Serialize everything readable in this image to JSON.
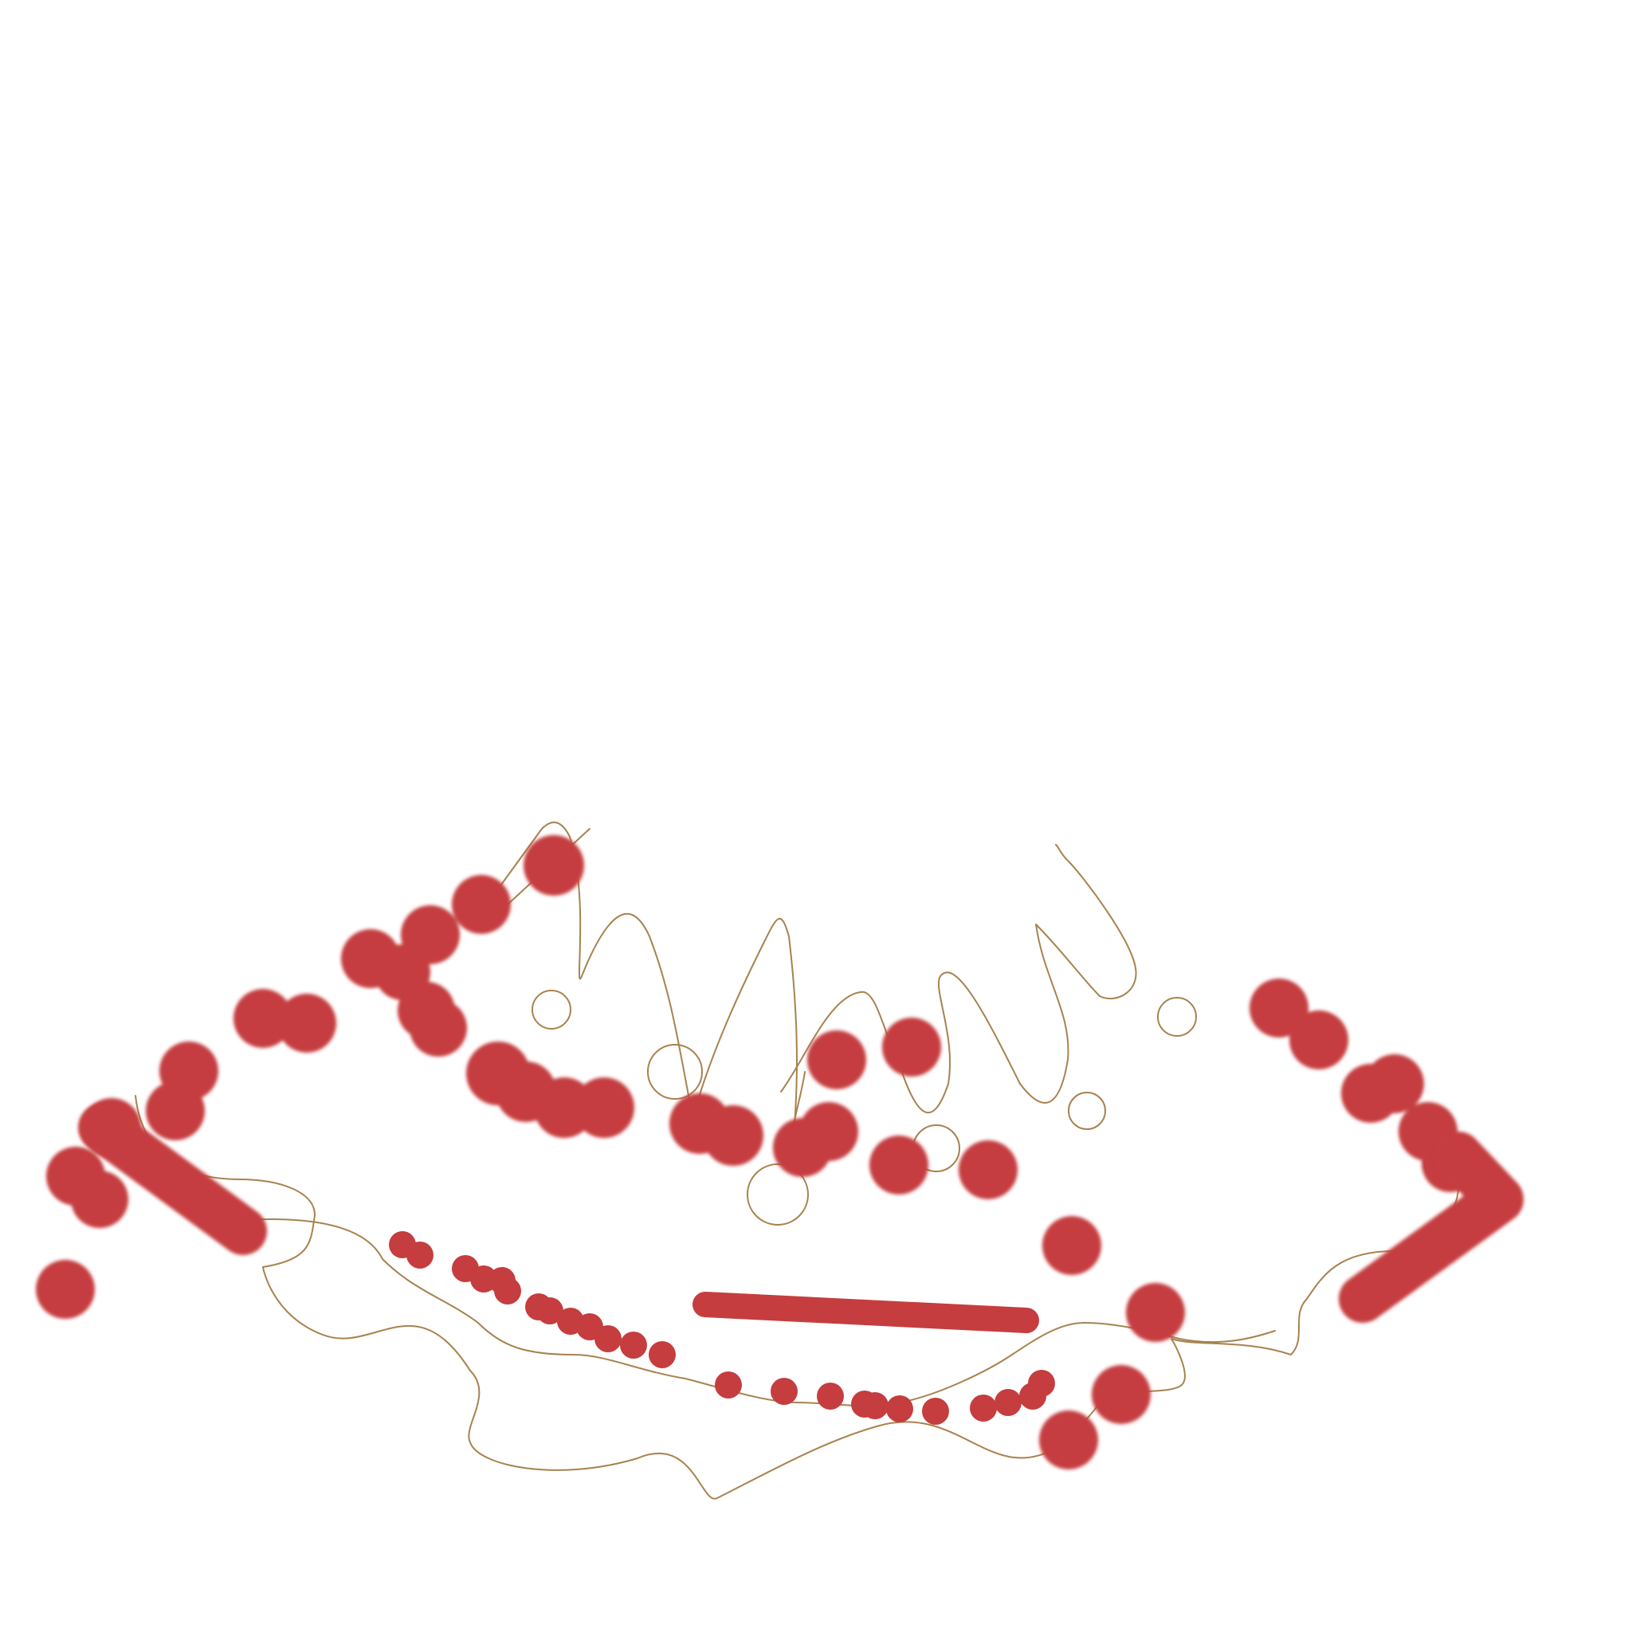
{
  "colors": {
    "background": "#ffffff",
    "paint": "#c53d3f",
    "line": "#a8824e"
  }
}
